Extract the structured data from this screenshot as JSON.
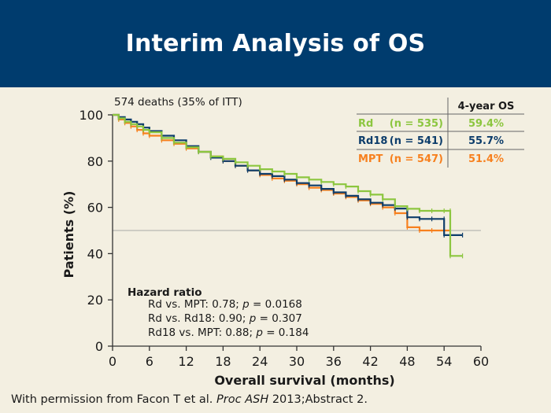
{
  "slide": {
    "title": "Interim Analysis of OS",
    "footer_prefix": "With permission from Facon T et al. ",
    "footer_journal": "Proc ASH",
    "footer_suffix": " 2013;Abstract 2."
  },
  "colors": {
    "header_bg": "#003c6e",
    "background": "#f3efe1",
    "rd": "#8cc63f",
    "rd18": "#0d3d6b",
    "mpt": "#f7801e"
  },
  "chart_data": {
    "type": "line",
    "title": "",
    "xlabel": "Overall survival (months)",
    "ylabel": "Patients (%)",
    "xlim": [
      0,
      60
    ],
    "ylim": [
      0,
      100
    ],
    "xticks": [
      "0",
      "6",
      "12",
      "18",
      "24",
      "30",
      "36",
      "42",
      "48",
      "54",
      "60"
    ],
    "yticks": [
      "0",
      "20",
      "40",
      "60",
      "80",
      "100"
    ],
    "reference_line_y": 50,
    "annotation_deaths": "574 deaths (35% of ITT)",
    "legend_table": {
      "header": "4-year OS",
      "rows": [
        {
          "name": "Rd",
          "n": "(n = 535)",
          "os": "59.4%",
          "color": "#8cc63f"
        },
        {
          "name": "Rd18",
          "n": "(n = 541)",
          "os": "55.7%",
          "color": "#0d3d6b"
        },
        {
          "name": "MPT",
          "n": "(n = 547)",
          "os": "51.4%",
          "color": "#f7801e"
        }
      ]
    },
    "hazard_ratio": {
      "title": "Hazard ratio",
      "lines": [
        {
          "text": "Rd vs. MPT: 0.78; ",
          "p": "p",
          "value": " = 0.0168"
        },
        {
          "text": "Rd vs. Rd18: 0.90; ",
          "p": "p",
          "value": " = 0.307"
        },
        {
          "text": "Rd18 vs. MPT: 0.88; ",
          "p": "p",
          "value": " = 0.184"
        }
      ]
    },
    "series": [
      {
        "name": "Rd",
        "color": "#8cc63f",
        "x": [
          0,
          1,
          2,
          3,
          4,
          5,
          6,
          8,
          10,
          12,
          14,
          16,
          18,
          20,
          22,
          24,
          26,
          28,
          30,
          32,
          34,
          36,
          38,
          40,
          42,
          44,
          46,
          48,
          50,
          52,
          54,
          55,
          55,
          57
        ],
        "y": [
          100,
          98.5,
          97,
          96,
          95,
          93.5,
          92.5,
          90,
          88,
          86,
          84,
          82,
          81,
          79.5,
          78,
          76.5,
          75.5,
          74.5,
          73,
          72,
          71,
          70,
          69,
          67,
          65.5,
          63.5,
          60.5,
          59.4,
          58.5,
          58.5,
          58.5,
          58.5,
          39,
          39
        ]
      },
      {
        "name": "Rd18",
        "color": "#0d3d6b",
        "x": [
          0,
          1,
          2,
          3,
          4,
          5,
          6,
          8,
          10,
          12,
          14,
          16,
          18,
          20,
          22,
          24,
          26,
          28,
          30,
          32,
          34,
          36,
          38,
          40,
          42,
          44,
          46,
          48,
          50,
          52,
          54,
          54,
          57
        ],
        "y": [
          100,
          99,
          98,
          97,
          96,
          94.5,
          93,
          91,
          89,
          86.5,
          84,
          81.5,
          80,
          78,
          76,
          74.5,
          73.5,
          72,
          70.5,
          69.5,
          68,
          66.5,
          65,
          63.5,
          62,
          61,
          59.5,
          55.7,
          55,
          55,
          55,
          48,
          48
        ]
      },
      {
        "name": "MPT",
        "color": "#f7801e",
        "x": [
          0,
          1,
          2,
          3,
          4,
          5,
          6,
          8,
          10,
          12,
          14,
          16,
          18,
          20,
          22,
          24,
          26,
          28,
          30,
          32,
          34,
          36,
          38,
          40,
          42,
          44,
          46,
          48,
          50,
          52,
          54,
          55
        ],
        "y": [
          100,
          98,
          96.5,
          95,
          93.5,
          92,
          91,
          89,
          87.5,
          85.5,
          84,
          82,
          80,
          78,
          76,
          74,
          72.5,
          71.5,
          70,
          68.5,
          67.5,
          66,
          64.5,
          63,
          61.5,
          60,
          57.5,
          51.4,
          50,
          50,
          50,
          50
        ]
      }
    ]
  }
}
